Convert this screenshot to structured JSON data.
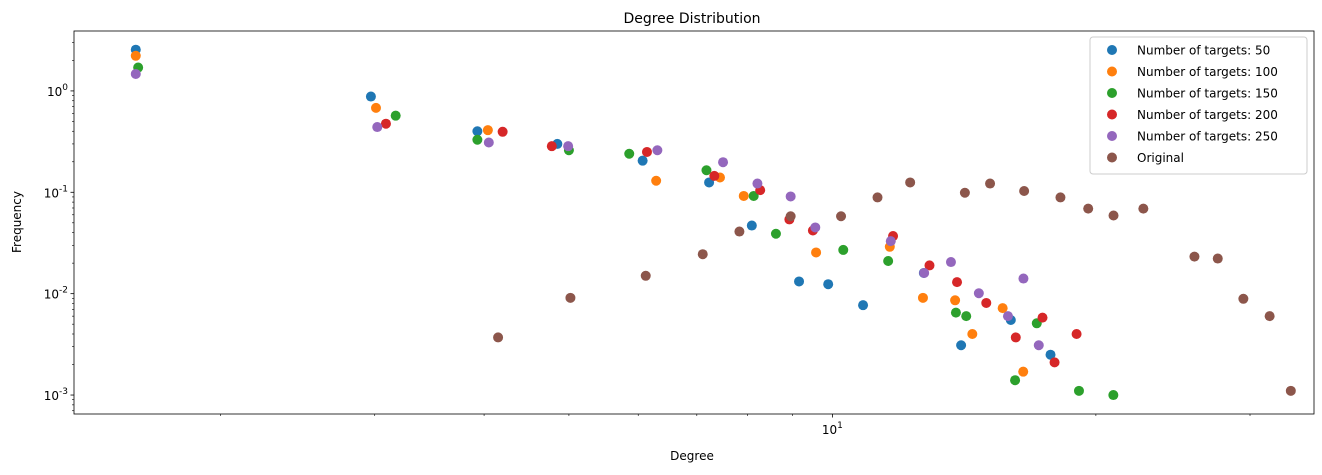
{
  "chart_data": {
    "type": "scatter",
    "title": "Degree Distribution",
    "xlabel": "Degree",
    "ylabel": "Frequency",
    "xscale": "log",
    "yscale": "log",
    "xlim": [
      1.36,
      35.5
    ],
    "ylim": [
      0.00065,
      3.9
    ],
    "x_major_ticks": [
      {
        "value": 10,
        "label": "10^1"
      }
    ],
    "x_minor_ticks": [
      2,
      3,
      4,
      5,
      6,
      7,
      8,
      9,
      20,
      30
    ],
    "y_major_ticks": [
      {
        "value": 0.001,
        "label": "10^-3"
      },
      {
        "value": 0.01,
        "label": "10^-2"
      },
      {
        "value": 0.1,
        "label": "10^-1"
      },
      {
        "value": 1,
        "label": "10^0"
      }
    ],
    "grid": false,
    "legend_position": "top-right",
    "series": [
      {
        "name": "Number of targets: 50",
        "color": "#1f77b4",
        "points": [
          [
            1.6,
            2.55
          ],
          [
            2.97,
            0.88
          ],
          [
            3.93,
            0.4
          ],
          [
            4.85,
            0.3
          ],
          [
            6.07,
            0.205
          ],
          [
            7.23,
            0.125
          ],
          [
            8.09,
            0.047
          ],
          [
            9.16,
            0.0132
          ],
          [
            9.89,
            0.0124
          ],
          [
            10.84,
            0.0077
          ],
          [
            12.72,
            0.016
          ],
          [
            14.03,
            0.0031
          ],
          [
            15.99,
            0.0055
          ],
          [
            17.75,
            0.0025
          ]
        ]
      },
      {
        "name": "Number of targets: 100",
        "color": "#ff7f0e",
        "points": [
          [
            1.6,
            2.22
          ],
          [
            3.01,
            0.68
          ],
          [
            4.04,
            0.41
          ],
          [
            6.29,
            0.13
          ],
          [
            7.44,
            0.14
          ],
          [
            7.92,
            0.092
          ],
          [
            9.58,
            0.0255
          ],
          [
            11.63,
            0.029
          ],
          [
            12.69,
            0.0091
          ],
          [
            13.81,
            0.0086
          ],
          [
            14.45,
            0.004
          ],
          [
            15.65,
            0.0072
          ],
          [
            16.52,
            0.0017
          ]
        ]
      },
      {
        "name": "Number of targets: 150",
        "color": "#2ca02c",
        "points": [
          [
            1.61,
            1.7
          ],
          [
            3.17,
            0.57
          ],
          [
            3.93,
            0.33
          ],
          [
            5,
            0.26
          ],
          [
            5.86,
            0.24
          ],
          [
            7.18,
            0.165
          ],
          [
            8.13,
            0.092
          ],
          [
            8.62,
            0.039
          ],
          [
            10.29,
            0.027
          ],
          [
            11.58,
            0.021
          ],
          [
            13.84,
            0.0065
          ],
          [
            14.22,
            0.006
          ],
          [
            16.17,
            0.0014
          ],
          [
            17.12,
            0.0051
          ],
          [
            19.13,
            0.0011
          ],
          [
            20.94,
            0.001
          ]
        ]
      },
      {
        "name": "Number of targets: 200",
        "color": "#d62728",
        "points": [
          [
            3.09,
            0.475
          ],
          [
            4.2,
            0.395
          ],
          [
            4.78,
            0.285
          ],
          [
            6.14,
            0.25
          ],
          [
            7.33,
            0.145
          ],
          [
            8.27,
            0.105
          ],
          [
            8.93,
            0.054
          ],
          [
            9.5,
            0.042
          ],
          [
            11.73,
            0.037
          ],
          [
            12.91,
            0.019
          ],
          [
            13.88,
            0.013
          ],
          [
            14.99,
            0.0081
          ],
          [
            16.2,
            0.0037
          ],
          [
            17.38,
            0.0058
          ],
          [
            17.94,
            0.0021
          ],
          [
            19.01,
            0.004
          ]
        ]
      },
      {
        "name": "Number of targets: 250",
        "color": "#9467bd",
        "points": [
          [
            1.6,
            1.47
          ],
          [
            3.02,
            0.44
          ],
          [
            4.05,
            0.31
          ],
          [
            4.99,
            0.285
          ],
          [
            6.31,
            0.26
          ],
          [
            7.5,
            0.198
          ],
          [
            8.21,
            0.122
          ],
          [
            8.96,
            0.091
          ],
          [
            9.56,
            0.045
          ],
          [
            11.66,
            0.033
          ],
          [
            12.73,
            0.016
          ],
          [
            13.66,
            0.0205
          ],
          [
            14.7,
            0.0101
          ],
          [
            15.87,
            0.006
          ],
          [
            16.53,
            0.0141
          ],
          [
            17.21,
            0.0031
          ]
        ]
      },
      {
        "name": "Original",
        "color": "#8c564b",
        "points": [
          [
            4.15,
            0.0037
          ],
          [
            5.02,
            0.0091
          ],
          [
            6.12,
            0.015
          ],
          [
            7.11,
            0.0245
          ],
          [
            7.83,
            0.041
          ],
          [
            8.96,
            0.058
          ],
          [
            10.23,
            0.058
          ],
          [
            11.26,
            0.089
          ],
          [
            12.27,
            0.125
          ],
          [
            14.17,
            0.099
          ],
          [
            15.14,
            0.122
          ],
          [
            16.56,
            0.103
          ],
          [
            18.22,
            0.089
          ],
          [
            19.6,
            0.069
          ],
          [
            20.95,
            0.059
          ],
          [
            22.66,
            0.069
          ],
          [
            25.92,
            0.0232
          ],
          [
            27.56,
            0.0222
          ],
          [
            29.48,
            0.0089
          ],
          [
            31.59,
            0.006
          ],
          [
            33.4,
            0.0011
          ]
        ]
      }
    ]
  }
}
